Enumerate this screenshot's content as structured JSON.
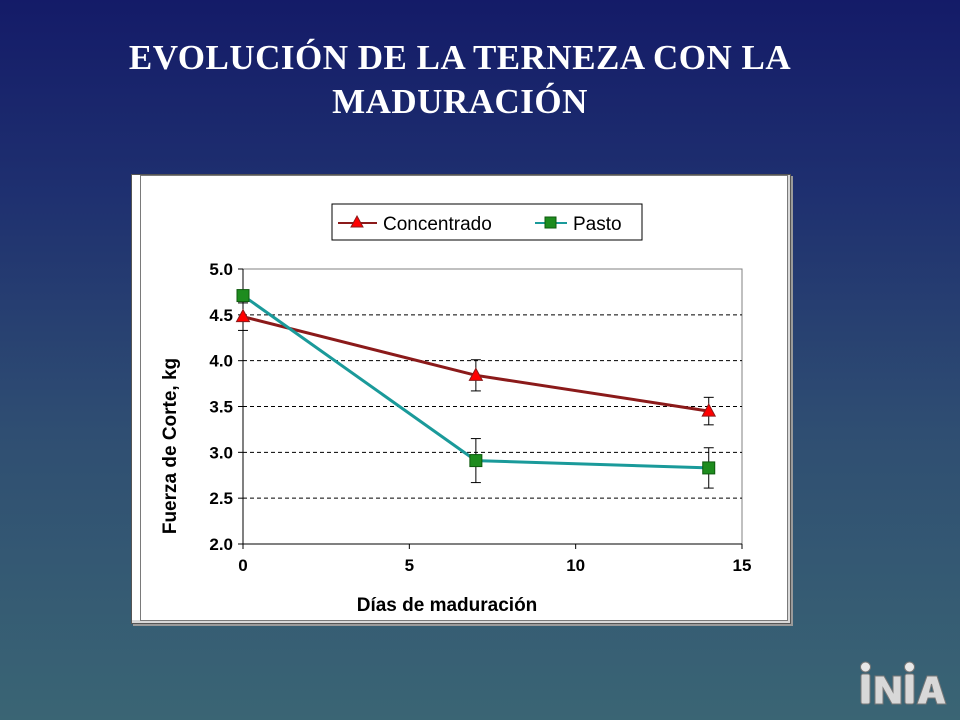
{
  "slide": {
    "title_line1": "EVOLUCIÓN DE LA TERNEZA CON LA",
    "title_line2": "MADURACIÓN"
  },
  "colors": {
    "concentrado_line": "#8b1a1a",
    "concentrado_marker": "#ff0000",
    "pasto_line": "#1a9a9a",
    "pasto_marker": "#1e8c1e"
  },
  "chart_data": {
    "type": "line",
    "xlabel": "Días de maduración",
    "ylabel": "Fuerza de Corte, kg",
    "xlim": [
      0,
      15
    ],
    "ylim": [
      2.0,
      5.0
    ],
    "xticks": [
      "0",
      "5",
      "10",
      "15"
    ],
    "yticks": [
      "2.0",
      "2.5",
      "3.0",
      "3.5",
      "4.0",
      "4.5",
      "5.0"
    ],
    "grid": "horizontal-dashed",
    "legend_position": "top",
    "series": [
      {
        "name": "Concentrado",
        "marker": "triangle",
        "x": [
          0,
          7,
          14
        ],
        "y": [
          4.48,
          3.84,
          3.45
        ],
        "err": [
          0.15,
          0.17,
          0.15
        ]
      },
      {
        "name": "Pasto",
        "marker": "square",
        "x": [
          0,
          7,
          14
        ],
        "y": [
          4.71,
          2.91,
          2.83
        ],
        "err": [
          0.0,
          0.24,
          0.22
        ]
      }
    ]
  },
  "logo": {
    "text": "INIA"
  }
}
